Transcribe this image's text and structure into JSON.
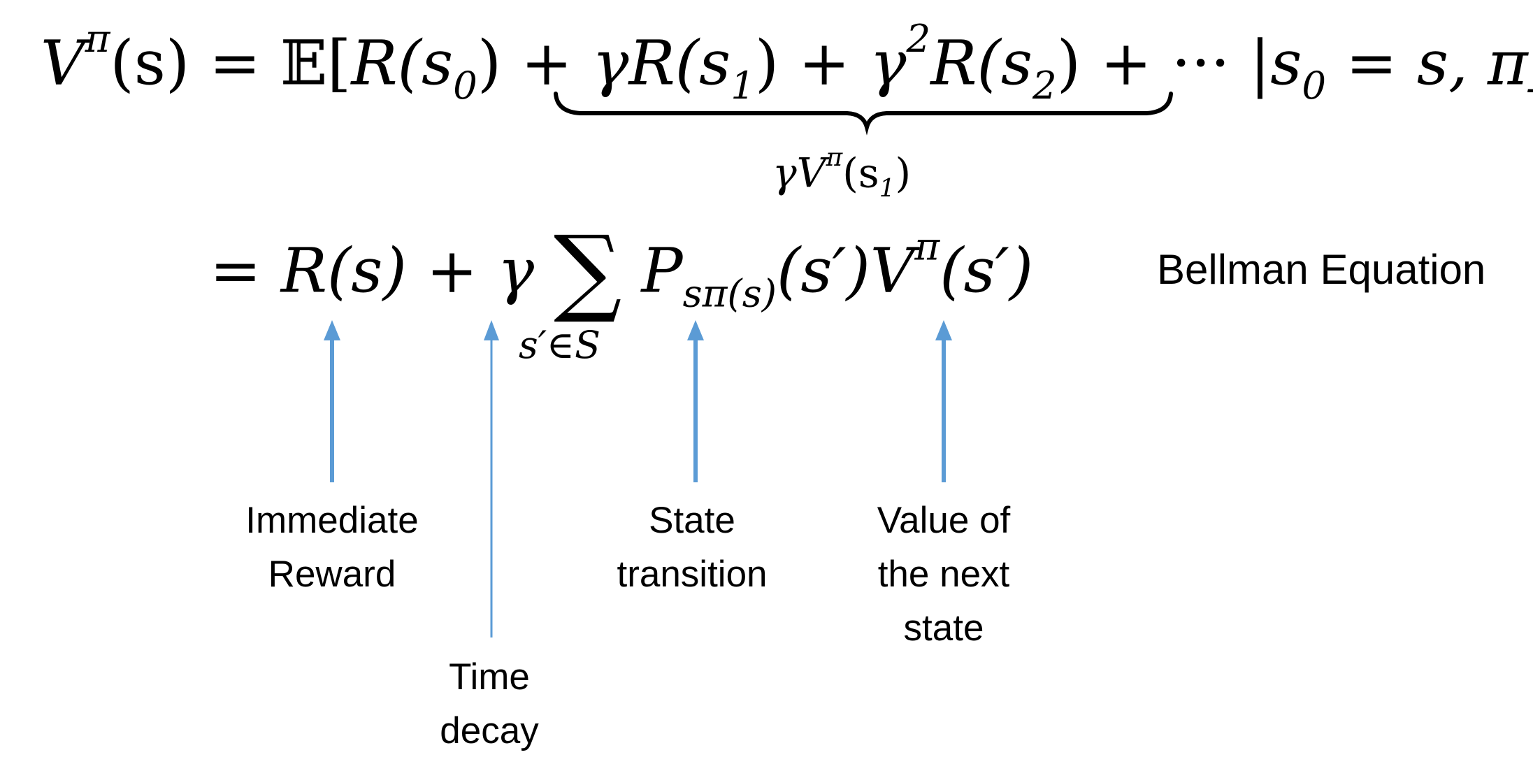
{
  "equation": {
    "line1": {
      "V": "V",
      "pi": "π",
      "s_arg": "(s)",
      "eq": " = ",
      "E": "𝔼",
      "lb": "[",
      "R0": "R(s",
      "sub0": "0",
      "close0": ") + ",
      "gR": "γR(s",
      "sub1": "1",
      "close1": ") + ",
      "g2": "γ",
      "sup2": "2",
      "R2": "R(s",
      "sub2": "2",
      "close2": ") + ··· ",
      "cond": "|s",
      "cond_sub": "0",
      "cond_rest": " = s, π]"
    },
    "brace_label": {
      "g": "γV",
      "pi": "π",
      "arg": "(s",
      "sub": "1",
      "close": ")"
    },
    "line2": {
      "eq": "= ",
      "Rs": "R(s) + γ ",
      "sum": "∑",
      "P": " P",
      "P_sub": "sπ(s)",
      "P_arg": "(s′)V",
      "pi": "π",
      "V_arg": "(s′)"
    },
    "sum_limit": "s′∈S"
  },
  "labels": {
    "bellman": "Bellman Equation",
    "immediate_reward": [
      "Immediate",
      "Reward"
    ],
    "time_decay": [
      "Time",
      "decay"
    ],
    "state_transition": [
      "State",
      "transition"
    ],
    "value_next_state": [
      "Value of",
      "the next",
      "state"
    ]
  },
  "colors": {
    "arrow": "#5b9bd5",
    "text": "#000000"
  }
}
